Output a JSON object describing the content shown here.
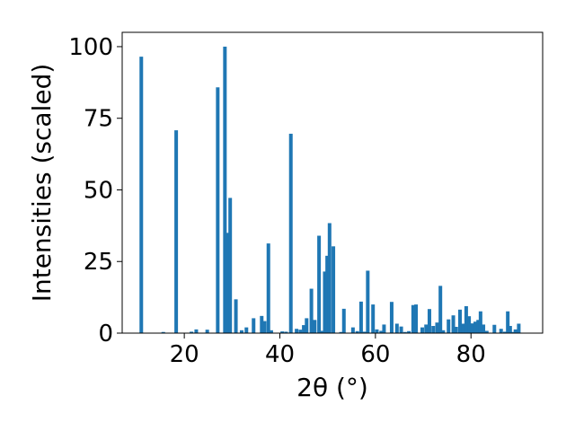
{
  "chart_data": {
    "type": "bar",
    "xlabel": "2θ (°)",
    "ylabel": "Intensities (scaled)",
    "xlim": [
      7,
      95
    ],
    "ylim": [
      0,
      105
    ],
    "xticks": [
      20,
      40,
      60,
      80
    ],
    "yticks": [
      0,
      25,
      50,
      75,
      100
    ],
    "x": [
      11.0,
      15.6,
      18.3,
      21.5,
      22.5,
      24.8,
      27.0,
      28.5,
      29.0,
      29.6,
      30.8,
      32.0,
      33.0,
      34.5,
      36.2,
      36.8,
      37.6,
      38.2,
      40.5,
      41.3,
      42.3,
      43.5,
      44.3,
      45.0,
      45.6,
      46.6,
      47.3,
      48.2,
      48.9,
      49.4,
      49.9,
      50.4,
      51.2,
      52.8,
      53.4,
      55.3,
      56.2,
      57.0,
      57.7,
      58.4,
      59.5,
      60.3,
      61.2,
      61.8,
      63.4,
      64.5,
      65.4,
      66.2,
      67.0,
      67.9,
      68.5,
      69.8,
      70.6,
      71.3,
      72.1,
      72.9,
      73.6,
      74.2,
      75.3,
      76.3,
      76.9,
      77.7,
      78.4,
      79.0,
      79.6,
      80.3,
      80.9,
      81.5,
      82.0,
      82.6,
      83.3,
      84.9,
      86.3,
      87.1,
      87.7,
      88.2,
      88.8,
      89.3,
      90.0
    ],
    "values": [
      96.5,
      0.4,
      70.8,
      0.5,
      1.3,
      1.2,
      85.8,
      100,
      35.0,
      47.2,
      11.8,
      1.0,
      2.0,
      5.2,
      6.0,
      4.2,
      31.3,
      1.0,
      0.6,
      0.5,
      69.6,
      1.5,
      1.2,
      2.8,
      5.2,
      15.5,
      4.6,
      34.0,
      0.8,
      21.5,
      27.0,
      38.4,
      30.3,
      0.4,
      8.5,
      2.0,
      0.7,
      11.0,
      0.5,
      21.8,
      10.0,
      1.3,
      0.8,
      3.0,
      10.9,
      3.3,
      2.3,
      0.4,
      0.7,
      9.8,
      10.0,
      2.0,
      3.0,
      8.4,
      2.5,
      3.7,
      16.5,
      1.0,
      4.8,
      6.2,
      2.2,
      8.2,
      3.3,
      9.4,
      5.9,
      3.4,
      4.0,
      4.6,
      7.6,
      3.0,
      0.8,
      2.9,
      1.5,
      0.5,
      7.6,
      2.5,
      0.4,
      1.3,
      3.3
    ],
    "bar_color": "#1f77b4",
    "grid": false,
    "legend": false
  }
}
